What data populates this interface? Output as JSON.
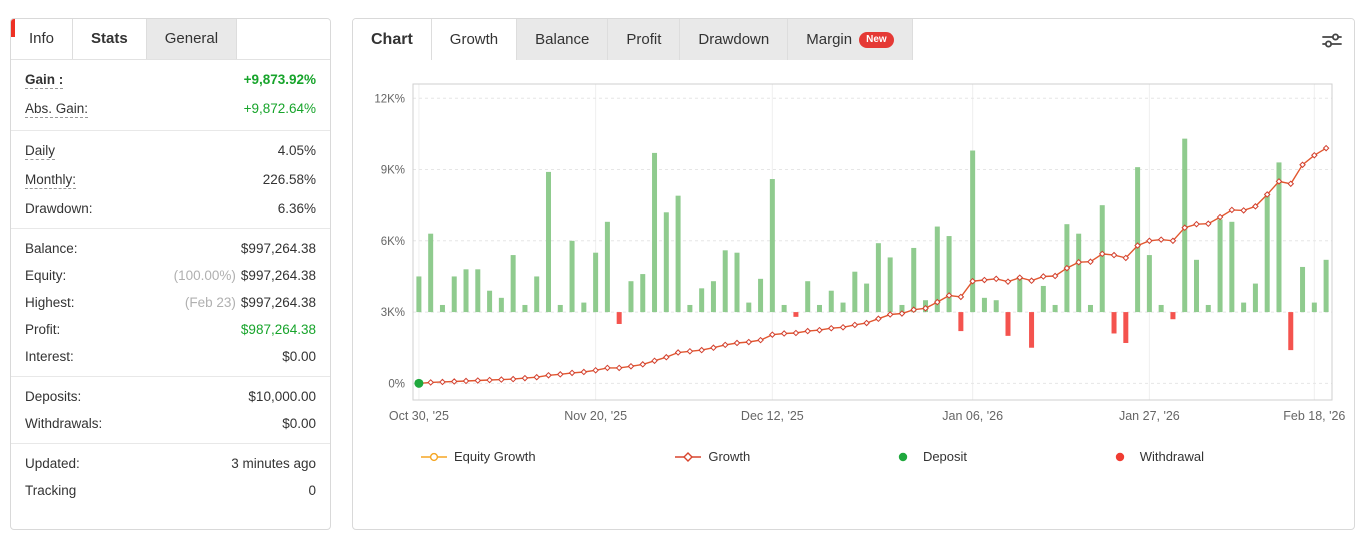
{
  "left_panel": {
    "tabs": [
      {
        "label": "Info",
        "style": "plain"
      },
      {
        "label": "Stats",
        "style": "bold"
      },
      {
        "label": "General",
        "style": "muted"
      }
    ],
    "groups": [
      [
        {
          "label": "Gain :",
          "underline": true,
          "value": "+9,873.92%",
          "value_class": "green",
          "bold": true
        },
        {
          "label": "Abs. Gain:",
          "underline": true,
          "value": "+9,872.64%",
          "value_class": "green"
        }
      ],
      [
        {
          "label": "Daily",
          "underline": true,
          "value": "4.05%"
        },
        {
          "label": "Monthly:",
          "underline": true,
          "value": "226.58%"
        },
        {
          "label": "Drawdown:",
          "underline": false,
          "value": "6.36%"
        }
      ],
      [
        {
          "label": "Balance:",
          "underline": false,
          "value": "$997,264.38"
        },
        {
          "label": "Equity:",
          "underline": false,
          "prefix": "(100.00%)",
          "value": "$997,264.38"
        },
        {
          "label": "Highest:",
          "underline": false,
          "prefix": "(Feb 23)",
          "value": "$997,264.38"
        },
        {
          "label": "Profit:",
          "underline": false,
          "value": "$987,264.38",
          "value_class": "green"
        },
        {
          "label": "Interest:",
          "underline": false,
          "value": "$0.00"
        }
      ],
      [
        {
          "label": "Deposits:",
          "underline": false,
          "value": "$10,000.00"
        },
        {
          "label": "Withdrawals:",
          "underline": false,
          "value": "$0.00"
        }
      ],
      [
        {
          "label": "Updated:",
          "underline": false,
          "value": "3 minutes ago"
        },
        {
          "label": "Tracking",
          "underline": false,
          "value": "0"
        }
      ]
    ]
  },
  "chart_panel": {
    "tabs": [
      {
        "label": "Chart",
        "style": "title"
      },
      {
        "label": "Growth",
        "style": "active"
      },
      {
        "label": "Balance",
        "style": "muted"
      },
      {
        "label": "Profit",
        "style": "muted"
      },
      {
        "label": "Drawdown",
        "style": "muted"
      },
      {
        "label": "Margin",
        "style": "muted",
        "badge": "New"
      }
    ],
    "legend": [
      {
        "label": "Equity Growth",
        "marker": "circle-line",
        "color": "#f5a623"
      },
      {
        "label": "Growth",
        "marker": "diamond-line",
        "color": "#d8452e"
      },
      {
        "label": "Deposit",
        "marker": "dot",
        "color": "#1fa83d"
      },
      {
        "label": "Withdrawal",
        "marker": "dot",
        "color": "#f03c32"
      }
    ]
  },
  "chart_data": {
    "type": "bar",
    "title": "Growth",
    "y_unit": "thousands of percent (K%)",
    "y_ticks": [
      {
        "value": 0,
        "label": "0%"
      },
      {
        "value": 3,
        "label": "3K%"
      },
      {
        "value": 6,
        "label": "6K%"
      },
      {
        "value": 9,
        "label": "9K%"
      },
      {
        "value": 12,
        "label": "12K%"
      }
    ],
    "y_min": -0.7,
    "y_max": 12.6,
    "x_tick_indices": [
      0,
      15,
      30,
      47,
      62,
      76
    ],
    "x_tick_labels": [
      "Oct 30, '25",
      "Nov 20, '25",
      "Dec 12, '25",
      "Jan 06, '26",
      "Jan 27, '26",
      "Feb 18, '26"
    ],
    "bar_baseline": 3,
    "bars_note": "green bars = periodic gain (drawn up from baseline gridline), negative values = red withdrawal bars (drawn down)",
    "bars": [
      1.5,
      3.3,
      0.3,
      1.5,
      1.8,
      1.8,
      0.9,
      0.6,
      2.4,
      0.3,
      1.5,
      5.9,
      0.3,
      3.0,
      0.4,
      2.5,
      3.8,
      -0.5,
      1.3,
      1.6,
      6.7,
      4.2,
      4.9,
      0.3,
      1.0,
      1.3,
      2.6,
      2.5,
      0.4,
      1.4,
      5.6,
      0.3,
      -0.2,
      1.3,
      0.3,
      0.9,
      0.4,
      1.7,
      1.2,
      2.9,
      2.3,
      0.3,
      2.7,
      0.5,
      3.6,
      3.2,
      -0.8,
      6.8,
      0.6,
      0.5,
      -1.0,
      1.5,
      -1.5,
      1.1,
      0.3,
      3.7,
      3.3,
      0.3,
      4.5,
      -0.9,
      -1.3,
      6.1,
      2.4,
      0.3,
      -0.3,
      7.3,
      2.2,
      0.3,
      3.9,
      3.8,
      0.4,
      1.2,
      5.0,
      6.3,
      -1.6,
      1.9,
      0.4,
      2.2
    ],
    "growth_line": [
      0.0,
      0.04,
      0.06,
      0.08,
      0.1,
      0.12,
      0.14,
      0.16,
      0.18,
      0.22,
      0.26,
      0.34,
      0.38,
      0.44,
      0.48,
      0.55,
      0.65,
      0.65,
      0.72,
      0.8,
      0.95,
      1.1,
      1.3,
      1.35,
      1.4,
      1.5,
      1.62,
      1.7,
      1.74,
      1.82,
      2.05,
      2.1,
      2.12,
      2.2,
      2.24,
      2.32,
      2.36,
      2.46,
      2.54,
      2.72,
      2.9,
      2.94,
      3.1,
      3.16,
      3.42,
      3.7,
      3.64,
      4.3,
      4.35,
      4.4,
      4.28,
      4.45,
      4.32,
      4.5,
      4.52,
      4.85,
      5.1,
      5.12,
      5.45,
      5.4,
      5.28,
      5.8,
      6.0,
      6.05,
      6.0,
      6.55,
      6.7,
      6.72,
      7.0,
      7.3,
      7.28,
      7.45,
      7.95,
      8.5,
      8.4,
      9.2,
      9.6,
      9.9
    ],
    "deposit_points": [
      {
        "index": 0,
        "value": 0
      }
    ],
    "colors": {
      "bar_positive": "#8fcb8e",
      "bar_negative": "#f4534e",
      "line": "#e2572f",
      "marker_stroke": "#d23f2e",
      "deposit": "#1fa83d",
      "grid": "#e6e6e6",
      "border": "#cfcfcf",
      "axis_text": "#666666"
    }
  }
}
